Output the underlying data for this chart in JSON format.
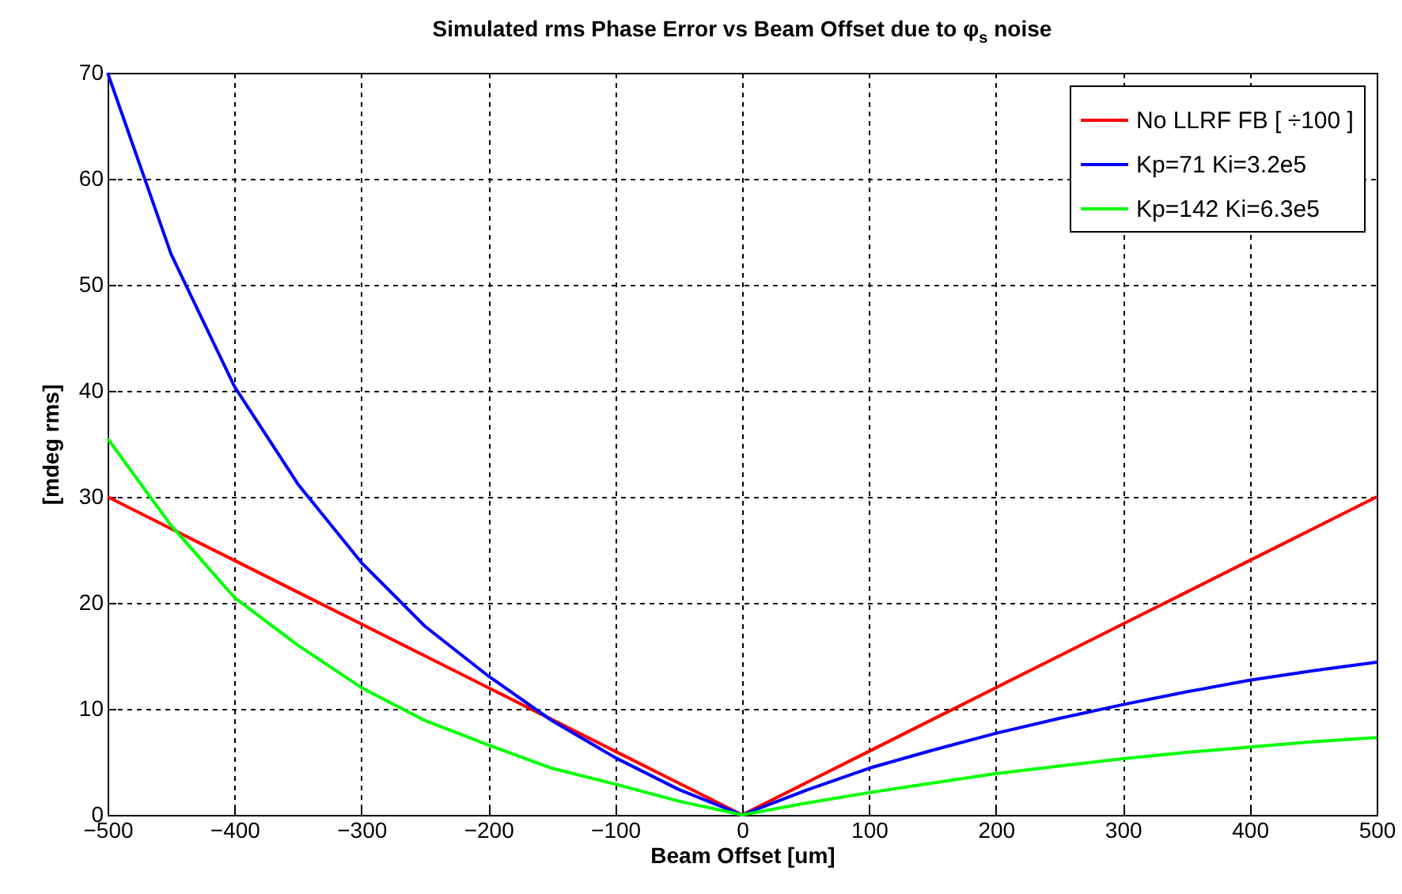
{
  "chart_data": {
    "type": "line",
    "title": "Simulated rms Phase Error vs Beam Offset due to φ$_{s}$ noise",
    "xlabel": "Beam Offset [um]",
    "ylabel": "[mdeg rms]",
    "x": [
      -500,
      -450,
      -400,
      -350,
      -300,
      -250,
      -200,
      -150,
      -100,
      -50,
      0,
      50,
      100,
      150,
      200,
      250,
      300,
      350,
      400,
      450,
      500
    ],
    "series": [
      {
        "name": "No LLRF FB [ ÷100 ]",
        "color": "#ff0000",
        "values": [
          30,
          27,
          24,
          21,
          18,
          15,
          12,
          9,
          6,
          3,
          0,
          3,
          6,
          9,
          12,
          15,
          18,
          21,
          24,
          27,
          30
        ]
      },
      {
        "name": "Kp=71 Ki=3.2e5",
        "color": "#0000ff",
        "values": [
          70,
          52.9,
          40.4,
          31.2,
          23.8,
          17.8,
          13.1,
          8.9,
          5.4,
          2.4,
          0,
          2.3,
          4.4,
          6.1,
          7.7,
          9.1,
          10.4,
          11.6,
          12.7,
          13.6,
          14.4
        ]
      },
      {
        "name": "Kp=142 Ki=6.3e5",
        "color": "#00ff00",
        "values": [
          35.5,
          27.3,
          20.5,
          16,
          12,
          8.9,
          6.6,
          4.4,
          2.9,
          1.3,
          0,
          1.1,
          2.1,
          3,
          3.9,
          4.6,
          5.3,
          5.9,
          6.4,
          6.9,
          7.3
        ]
      }
    ],
    "xlim": [
      -500,
      500
    ],
    "ylim": [
      0,
      70
    ],
    "xticks": [
      -500,
      -400,
      -300,
      -200,
      -100,
      0,
      100,
      200,
      300,
      400,
      500
    ],
    "yticks": [
      0,
      10,
      20,
      30,
      40,
      50,
      60,
      70
    ],
    "grid": true,
    "legend": "top right",
    "line_style": "solid"
  }
}
